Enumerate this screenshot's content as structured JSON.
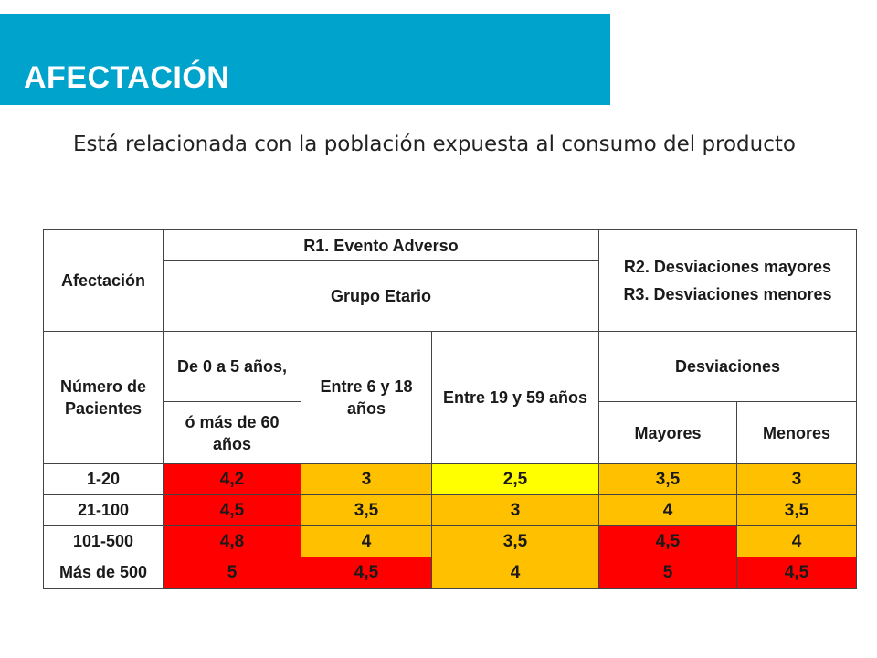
{
  "slide": {
    "title": "AFECTACIÓN",
    "intro": "Está relacionada con la población expuesta al consumo del producto"
  },
  "table": {
    "header": {
      "afectacion": "Afectación",
      "r1": "R1. Evento Adverso",
      "grupo_etario": "Grupo Etario",
      "r2": "R2. Desviaciones mayores",
      "r3": "R3. Desviaciones menores",
      "numero_pacientes": "Número de Pacientes",
      "col_0_5_a": "De 0 a 5 años,",
      "col_0_5_b": "ó más de 60 años",
      "col_6_18": "Entre 6 y 18 años",
      "col_19_59": "Entre 19 y 59 años",
      "desviaciones": "Desviaciones",
      "mayores": "Mayores",
      "menores": "Menores"
    },
    "rows": [
      {
        "label": "1-20",
        "c0": "4,2",
        "c1": "3",
        "c2": "2,5",
        "c3": "3,5",
        "c4": "3"
      },
      {
        "label": "21-100",
        "c0": "4,5",
        "c1": "3,5",
        "c2": "3",
        "c3": "4",
        "c4": "3,5"
      },
      {
        "label": "101-500",
        "c0": "4,8",
        "c1": "4",
        "c2": "3,5",
        "c3": "4,5",
        "c4": "4"
      },
      {
        "label": "Más de 500",
        "c0": "5",
        "c1": "4,5",
        "c2": "4",
        "c3": "5",
        "c4": "4,5"
      }
    ],
    "colors": {
      "red": "#ff0000",
      "orange": "#ffc000",
      "yellow": "#ffff00"
    }
  }
}
